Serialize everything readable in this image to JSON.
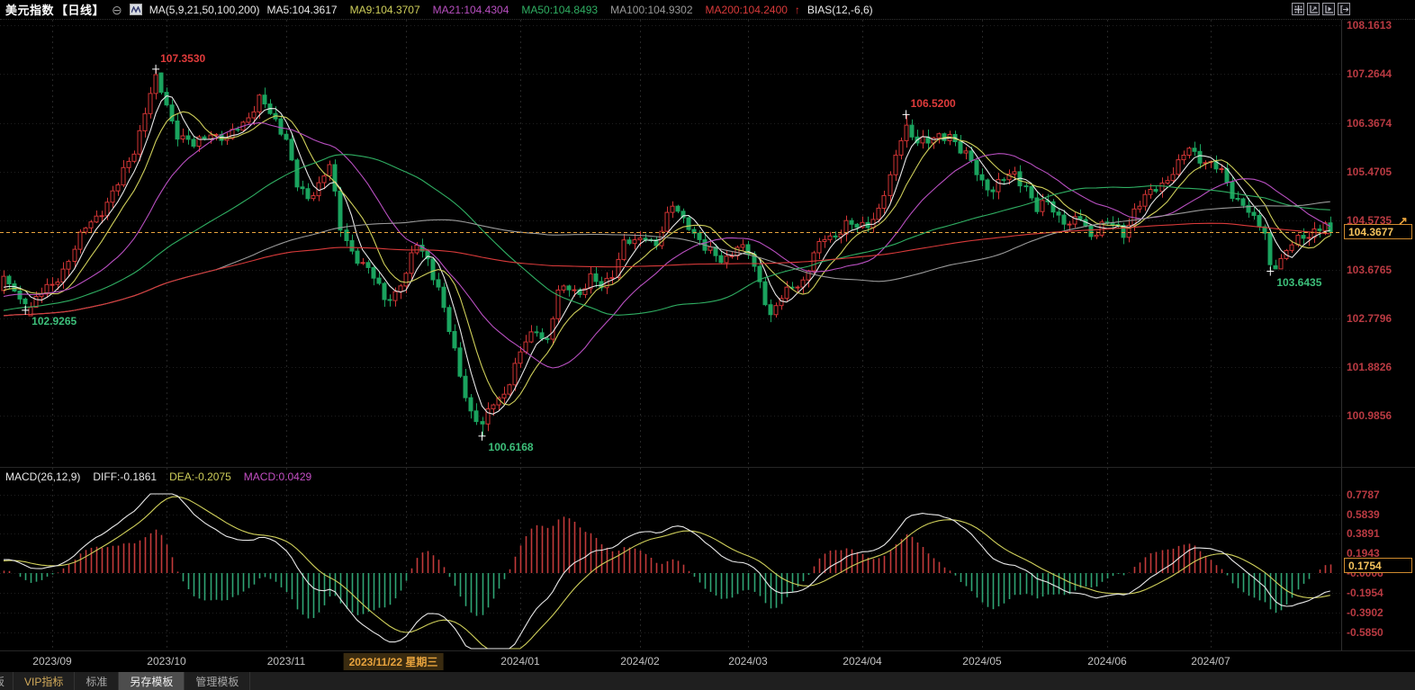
{
  "header": {
    "title": "美元指数",
    "period": "【日线】",
    "ma_group_label": "MA(5,9,21,50,100,200)",
    "ma_legend": [
      {
        "label": "MA5:104.3617",
        "color": "#e8e8e8"
      },
      {
        "label": "MA9:104.3707",
        "color": "#cfcf5a"
      },
      {
        "label": "MA21:104.4304",
        "color": "#b84fc0"
      },
      {
        "label": "MA50:104.8493",
        "color": "#2fae62"
      },
      {
        "label": "MA100:104.9302",
        "color": "#9a9a9a"
      },
      {
        "label": "MA200:104.2400",
        "color": "#d93a3a"
      }
    ],
    "trend_arrow": "↑",
    "bias_label": "BIAS(12,-6,6)"
  },
  "chart_data": {
    "type": "candlestick",
    "title": "美元指数 日线",
    "days_total": 245,
    "axis_text_color": "#b93a42",
    "price_axis_labels": [
      "108.1613",
      "107.2644",
      "106.3674",
      "105.4705",
      "104.5735",
      "103.6765",
      "102.7796",
      "101.8826",
      "100.9856"
    ],
    "price_axis_top": 108.1613,
    "price_axis_step": 0.89695,
    "last_price": "104.3677",
    "price_line_color": "#e8a33d",
    "price_arrow": "↗",
    "candle_up_color": "#d23535",
    "candle_down_color": "#1aa35e",
    "ma_periods": [
      5,
      9,
      21,
      50,
      100,
      200
    ],
    "ma_colors": {
      "5": "#e8e8e8",
      "9": "#cfcf5a",
      "21": "#b84fc0",
      "50": "#2fae62",
      "100": "#9a9a9a",
      "200": "#d93a3a"
    },
    "x_axis": {
      "month_gridline_days": [
        9,
        30,
        52,
        74,
        95,
        117,
        137,
        158,
        180,
        203,
        222
      ],
      "month_labels": [
        {
          "label": "2023/09",
          "day": 9
        },
        {
          "label": "2023/10",
          "day": 30
        },
        {
          "label": "2023/11",
          "day": 52
        },
        {
          "label": "2024/01",
          "day": 95
        },
        {
          "label": "2024/02",
          "day": 117
        },
        {
          "label": "2024/03",
          "day": 137
        },
        {
          "label": "2024/04",
          "day": 158
        },
        {
          "label": "2024/05",
          "day": 180
        },
        {
          "label": "2024/06",
          "day": 203
        },
        {
          "label": "2024/07",
          "day": 222
        }
      ],
      "selected_date": {
        "label": "2023/11/22 星期三",
        "day": 70
      }
    },
    "price_anchors": [
      [
        0,
        103.45
      ],
      [
        2,
        103.25
      ],
      [
        4,
        102.95
      ],
      [
        6,
        103.15
      ],
      [
        9,
        103.35
      ],
      [
        12,
        103.9
      ],
      [
        15,
        104.4
      ],
      [
        18,
        104.8
      ],
      [
        21,
        105.2
      ],
      [
        24,
        105.9
      ],
      [
        26,
        106.6
      ],
      [
        28,
        107.15
      ],
      [
        30,
        106.7
      ],
      [
        32,
        106.2
      ],
      [
        35,
        105.9
      ],
      [
        38,
        106.25
      ],
      [
        41,
        106.0
      ],
      [
        44,
        106.4
      ],
      [
        47,
        106.8
      ],
      [
        49,
        106.5
      ],
      [
        52,
        106.15
      ],
      [
        54,
        105.2
      ],
      [
        56,
        104.9
      ],
      [
        58,
        105.3
      ],
      [
        60,
        105.65
      ],
      [
        62,
        104.35
      ],
      [
        64,
        104.0
      ],
      [
        66,
        103.85
      ],
      [
        68,
        103.5
      ],
      [
        70,
        103.1
      ],
      [
        72,
        103.3
      ],
      [
        74,
        103.6
      ],
      [
        76,
        104.1
      ],
      [
        78,
        103.9
      ],
      [
        80,
        103.35
      ],
      [
        82,
        102.5
      ],
      [
        84,
        101.75
      ],
      [
        86,
        101.1
      ],
      [
        88,
        100.78
      ],
      [
        90,
        101.2
      ],
      [
        92,
        101.45
      ],
      [
        94,
        101.9
      ],
      [
        96,
        102.3
      ],
      [
        98,
        102.6
      ],
      [
        100,
        102.4
      ],
      [
        102,
        103.2
      ],
      [
        104,
        103.35
      ],
      [
        106,
        103.3
      ],
      [
        108,
        103.5
      ],
      [
        110,
        103.3
      ],
      [
        112,
        103.65
      ],
      [
        114,
        104.2
      ],
      [
        116,
        104.1
      ],
      [
        118,
        104.3
      ],
      [
        120,
        104.2
      ],
      [
        123,
        104.8
      ],
      [
        126,
        104.55
      ],
      [
        129,
        104.0
      ],
      [
        132,
        103.9
      ],
      [
        135,
        104.05
      ],
      [
        137,
        103.95
      ],
      [
        139,
        103.5
      ],
      [
        141,
        102.82
      ],
      [
        143,
        103.1
      ],
      [
        145,
        103.4
      ],
      [
        147,
        103.5
      ],
      [
        149,
        103.9
      ],
      [
        151,
        104.25
      ],
      [
        153,
        104.35
      ],
      [
        155,
        104.5
      ],
      [
        157,
        104.4
      ],
      [
        159,
        104.55
      ],
      [
        161,
        104.8
      ],
      [
        163,
        105.3
      ],
      [
        165,
        106.1
      ],
      [
        166,
        106.35
      ],
      [
        168,
        106.05
      ],
      [
        170,
        105.95
      ],
      [
        172,
        106.15
      ],
      [
        174,
        106.2
      ],
      [
        176,
        105.8
      ],
      [
        178,
        105.65
      ],
      [
        180,
        105.35
      ],
      [
        182,
        105.1
      ],
      [
        184,
        105.3
      ],
      [
        186,
        105.5
      ],
      [
        188,
        105.2
      ],
      [
        190,
        104.7
      ],
      [
        192,
        104.95
      ],
      [
        194,
        104.7
      ],
      [
        196,
        104.45
      ],
      [
        198,
        104.6
      ],
      [
        200,
        104.35
      ],
      [
        202,
        104.5
      ],
      [
        204,
        104.45
      ],
      [
        206,
        104.35
      ],
      [
        208,
        104.8
      ],
      [
        210,
        104.95
      ],
      [
        212,
        105.15
      ],
      [
        214,
        105.4
      ],
      [
        216,
        105.6
      ],
      [
        218,
        105.85
      ],
      [
        220,
        105.75
      ],
      [
        222,
        105.65
      ],
      [
        224,
        105.4
      ],
      [
        226,
        105.05
      ],
      [
        228,
        104.95
      ],
      [
        230,
        104.55
      ],
      [
        232,
        104.3
      ],
      [
        233,
        103.75
      ],
      [
        235,
        103.9
      ],
      [
        237,
        104.1
      ],
      [
        239,
        104.25
      ],
      [
        241,
        104.45
      ],
      [
        243,
        104.5
      ],
      [
        244,
        104.3677
      ]
    ],
    "annotations": [
      {
        "label": "107.3530",
        "day": 28,
        "price": 107.353,
        "kind": "high",
        "color": "#e03b3b"
      },
      {
        "label": "102.9265",
        "day": 4,
        "price": 102.9265,
        "kind": "low",
        "color": "#3dbf7a"
      },
      {
        "label": "100.6168",
        "day": 88,
        "price": 100.6168,
        "kind": "low",
        "color": "#3dbf7a"
      },
      {
        "label": "106.5200",
        "day": 166,
        "price": 106.52,
        "kind": "high",
        "color": "#e03b3b"
      },
      {
        "label": "103.6435",
        "day": 233,
        "price": 103.6435,
        "kind": "low",
        "color": "#3dbf7a"
      }
    ],
    "macd": {
      "title": "MACD(26,12,9)",
      "diff_label": "DIFF:-0.1861",
      "dea_label": "DEA:-0.2075",
      "macd_label": "MACD:0.0429",
      "params": {
        "slow": 26,
        "fast": 12,
        "signal": 9
      },
      "axis_labels": [
        "0.7787",
        "0.5839",
        "0.3891",
        "0.1943",
        "-0.0006",
        "-0.1954",
        "-0.3902",
        "-0.5850"
      ],
      "box_value": "0.1754",
      "diff_color": "#e8e8e8",
      "dea_color": "#cfcf5a",
      "hist_up_color": "#c23a3a",
      "hist_down_color": "#2fa474"
    }
  },
  "footer": {
    "tabs": [
      {
        "label": "板"
      },
      {
        "label": "VIP指标"
      },
      {
        "label": "标准"
      },
      {
        "label": "另存模板"
      },
      {
        "label": "管理模板"
      }
    ],
    "active_tab": "另存模板"
  }
}
